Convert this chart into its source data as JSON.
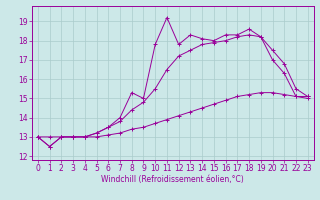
{
  "bg_color": "#cce8e8",
  "grid_color": "#aacccc",
  "line_color": "#990099",
  "xlabel": "Windchill (Refroidissement éolien,°C)",
  "xlim": [
    -0.5,
    23.5
  ],
  "ylim": [
    11.8,
    19.8
  ],
  "yticks": [
    12,
    13,
    14,
    15,
    16,
    17,
    18,
    19
  ],
  "xticks": [
    0,
    1,
    2,
    3,
    4,
    5,
    6,
    7,
    8,
    9,
    10,
    11,
    12,
    13,
    14,
    15,
    16,
    17,
    18,
    19,
    20,
    21,
    22,
    23
  ],
  "series1_x": [
    0,
    1,
    2,
    3,
    4,
    5,
    6,
    7,
    8,
    9,
    10,
    11,
    12,
    13,
    14,
    15,
    16,
    17,
    18,
    19,
    20,
    21,
    22,
    23
  ],
  "series1_y": [
    13.0,
    12.5,
    13.0,
    13.0,
    13.0,
    13.2,
    13.5,
    14.0,
    15.3,
    15.0,
    17.8,
    19.2,
    17.8,
    18.3,
    18.1,
    18.0,
    18.3,
    18.3,
    18.6,
    18.2,
    17.0,
    16.3,
    15.1,
    15.1
  ],
  "series2_x": [
    0,
    1,
    2,
    3,
    4,
    5,
    6,
    7,
    8,
    9,
    10,
    11,
    12,
    13,
    14,
    15,
    16,
    17,
    18,
    19,
    20,
    21,
    22,
    23
  ],
  "series2_y": [
    13.0,
    12.5,
    13.0,
    13.0,
    13.0,
    13.2,
    13.5,
    13.8,
    14.4,
    14.8,
    15.5,
    16.5,
    17.2,
    17.5,
    17.8,
    17.9,
    18.0,
    18.2,
    18.3,
    18.2,
    17.5,
    16.8,
    15.5,
    15.1
  ],
  "series3_x": [
    0,
    1,
    2,
    3,
    4,
    5,
    6,
    7,
    8,
    9,
    10,
    11,
    12,
    13,
    14,
    15,
    16,
    17,
    18,
    19,
    20,
    21,
    22,
    23
  ],
  "series3_y": [
    13.0,
    13.0,
    13.0,
    13.0,
    13.0,
    13.0,
    13.1,
    13.2,
    13.4,
    13.5,
    13.7,
    13.9,
    14.1,
    14.3,
    14.5,
    14.7,
    14.9,
    15.1,
    15.2,
    15.3,
    15.3,
    15.2,
    15.1,
    15.0
  ],
  "tick_fontsize": 5.5,
  "xlabel_fontsize": 5.5
}
